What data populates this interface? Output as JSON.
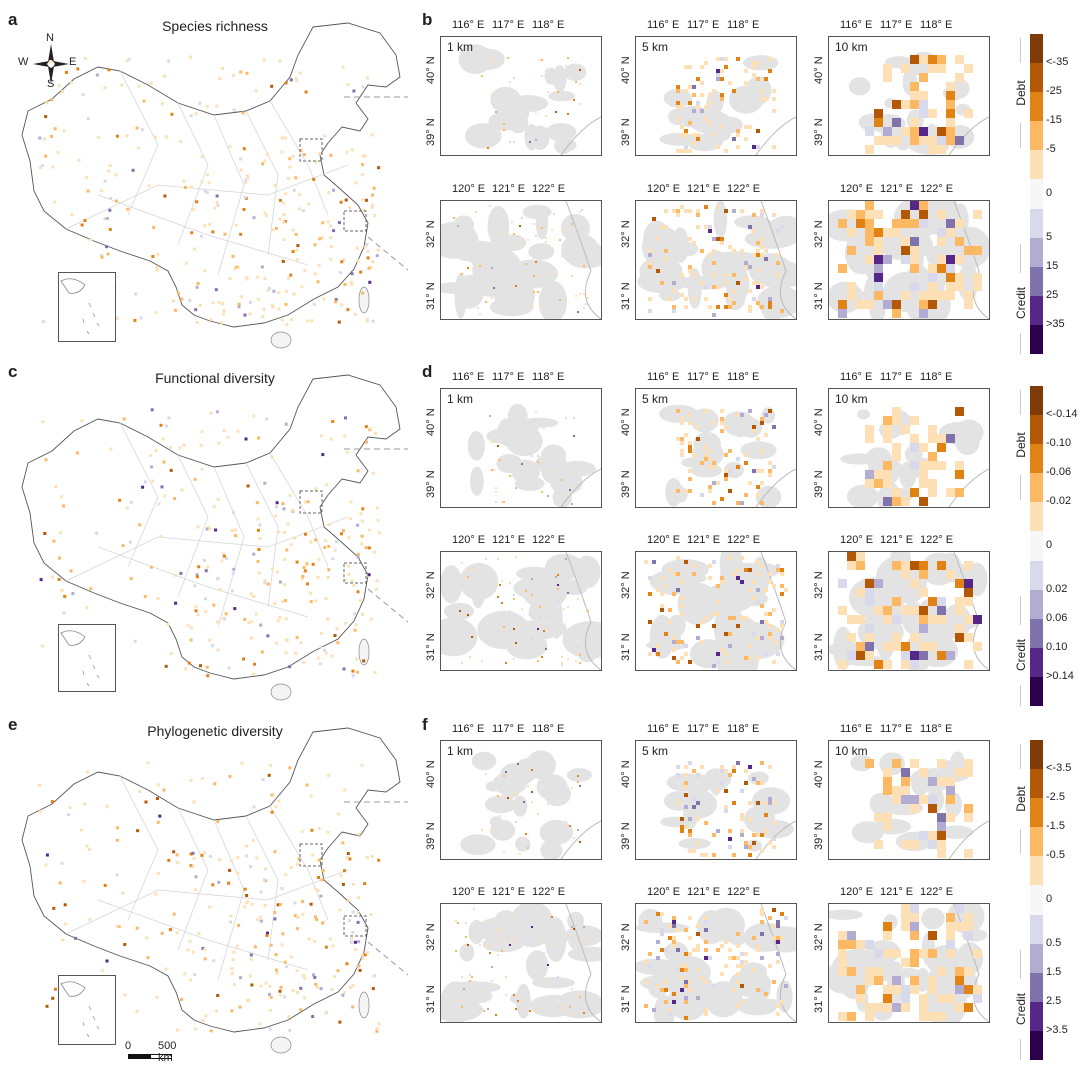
{
  "panels": [
    {
      "letter": "a",
      "title": "Species richness"
    },
    {
      "letter": "c",
      "title": "Functional diversity"
    },
    {
      "letter": "e",
      "title": "Phylogenetic diversity"
    }
  ],
  "zoom_letters": [
    "b",
    "d",
    "f"
  ],
  "compass": {
    "n": "N",
    "s": "S",
    "e": "E",
    "w": "W"
  },
  "scalebar": {
    "zero": "0",
    "distance": "500 km"
  },
  "resolutions": [
    "1 km",
    "5 km",
    "10 km"
  ],
  "beijing_x_ticks": [
    "116° E",
    "117° E",
    "118° E"
  ],
  "beijing_y_ticks": [
    "40° N",
    "39° N"
  ],
  "shanghai_x_ticks": [
    "120° E",
    "121° E",
    "122° E"
  ],
  "shanghai_y_ticks": [
    "32° N",
    "31° N"
  ],
  "legends": [
    {
      "labels": [
        "<-35",
        "-25",
        "-15",
        "-5",
        "0",
        "5",
        "15",
        "25",
        ">35"
      ]
    },
    {
      "labels": [
        "<-0.14",
        "-0.10",
        "-0.06",
        "-0.02",
        "0",
        "0.02",
        "0.06",
        "0.10",
        ">0.14"
      ]
    },
    {
      "labels": [
        "<-3.5",
        "-2.5",
        "-1.5",
        "-0.5",
        "0",
        "0.5",
        "1.5",
        "2.5",
        ">3.5"
      ]
    }
  ],
  "legend_side": {
    "debt": "Debt",
    "credit": "Credit"
  },
  "colors": {
    "debt": [
      "#7f3b08",
      "#b35806",
      "#e08214",
      "#fdb863",
      "#fee0b6"
    ],
    "zero": "#f7f7f7",
    "credit": [
      "#d8daeb",
      "#b2abd2",
      "#8073ac",
      "#542788",
      "#2d004b"
    ],
    "urban": "#e3e3e3",
    "border": "#9a9a9a"
  }
}
